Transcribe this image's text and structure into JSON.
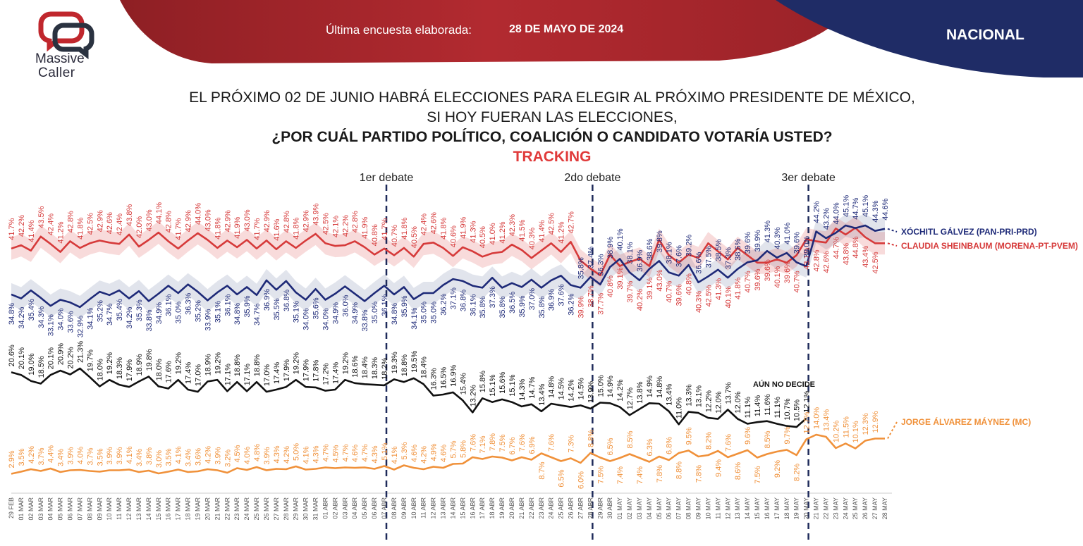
{
  "header": {
    "survey_label": "Última encuesta elaborada:",
    "survey_date": "28 DE MAYO DE 2024",
    "scope": "NACIONAL",
    "logo_line1": "Massive",
    "logo_line2": "Caller"
  },
  "title": {
    "line1": "EL PRÓXIMO 02 DE JUNIO HABRÁ ELECCIONES PARA ELEGIR AL PRÓXIMO PRESIDENTE DE MÉXICO,",
    "line2": "SI HOY FUERAN LAS ELECCIONES,",
    "line3": "¿POR CUÁL PARTIDO POLÍTICO, COALICIÓN O CANDIDATO VOTARÍA USTED?",
    "line4": "TRACKING"
  },
  "colors": {
    "red": "#d63a3a",
    "blue": "#1e2a78",
    "black": "#111111",
    "orange": "#f0913a",
    "banner_red": "#a5262c",
    "banner_blue": "#1f2c66"
  },
  "chart_data": {
    "type": "line",
    "x": [
      "29 FEB",
      "01 MAR",
      "02 MAR",
      "03 MAR",
      "04 MAR",
      "05 MAR",
      "06 MAR",
      "07 MAR",
      "08 MAR",
      "09 MAR",
      "10 MAR",
      "11 MAR",
      "12 MAR",
      "13 MAR",
      "14 MAR",
      "15 MAR",
      "16 MAR",
      "17 MAR",
      "18 MAR",
      "19 MAR",
      "20 MAR",
      "21 MAR",
      "22 MAR",
      "23 MAR",
      "24 MAR",
      "25 MAR",
      "26 MAR",
      "27 MAR",
      "28 MAR",
      "29 MAR",
      "30 MAR",
      "31 MAR",
      "01 ABR",
      "02 ABR",
      "03 ABR",
      "04 ABR",
      "05 ABR",
      "06 ABR",
      "07 ABR",
      "08 ABR",
      "09 ABR",
      "10 ABR",
      "11 ABR",
      "12 ABR",
      "13 ABR",
      "14 ABR",
      "15 ABR",
      "16 ABR",
      "17 ABR",
      "18 ABR",
      "19 ABR",
      "20 ABR",
      "21 ABR",
      "22 ABR",
      "23 ABR",
      "24 ABR",
      "25 ABR",
      "26 ABR",
      "27 ABR",
      "28 ABR",
      "29 ABR",
      "30 ABR",
      "01 MAY",
      "02 MAY",
      "03 MAY",
      "04 MAY",
      "05 MAY",
      "06 MAY",
      "07 MAY",
      "08 MAY",
      "09 MAY",
      "10 MAY",
      "11 MAY",
      "12 MAY",
      "13 MAY",
      "14 MAY",
      "15 MAY",
      "16 MAY",
      "17 MAY",
      "18 MAY",
      "19 MAY",
      "20 MAY",
      "21 MAY",
      "22 MAY",
      "23 MAY",
      "24 MAY",
      "25 MAY",
      "26 MAY",
      "27 MAY",
      "28 MAY"
    ],
    "series": [
      {
        "name": "CLAUDIA SHEINBAUM (MORENA-PT-PVEM)",
        "color": "#d63a3a",
        "values": [
          41.7,
          42.2,
          41.4,
          43.5,
          42.4,
          41.2,
          42.8,
          41.8,
          42.5,
          42.9,
          42.6,
          42.4,
          43.8,
          42.0,
          43.0,
          44.1,
          42.8,
          41.7,
          42.9,
          44.0,
          43.0,
          41.8,
          42.9,
          41.9,
          43.0,
          41.7,
          42.9,
          41.6,
          42.8,
          41.8,
          42.9,
          43.9,
          42.5,
          42.1,
          42.2,
          42.8,
          41.9,
          40.8,
          41.7,
          40.7,
          41.8,
          40.5,
          42.4,
          42.6,
          41.8,
          40.6,
          41.9,
          41.3,
          40.5,
          41.0,
          41.2,
          42.3,
          41.5,
          40.3,
          41.4,
          42.5,
          41.2,
          42.7,
          39.9,
          38.7,
          37.7,
          40.8,
          39.1,
          39.7,
          40.2,
          39.1,
          43.0,
          40.7,
          39.6,
          40.8,
          40.3,
          42.5,
          41.3,
          40.1,
          41.8,
          40.7,
          39.6,
          39.6,
          40.1,
          39.6,
          40.7,
          43.1,
          42.8,
          42.6,
          44.7,
          43.8,
          44.8,
          43.4,
          42.5,
          42.5
        ],
        "labels": [
          "41.7%",
          "42.2%",
          "41.4%",
          "43.5%",
          "42.4%",
          "41.2%",
          "42.8%",
          "41.8%",
          "42.5%",
          "42.9%",
          "42.6%",
          "42.4%",
          "43.8%",
          "42.0%",
          "43.0%",
          "44.1%",
          "42.8%",
          "41.7%",
          "42.9%",
          "44.0%",
          "43.0%",
          "41.8%",
          "42.9%",
          "41.9%",
          "43.0%",
          "41.7%",
          "42.9%",
          "41.6%",
          "42.8%",
          "41.8%",
          "42.9%",
          "43.9%",
          "42.5%",
          "42.1%",
          "42.2%",
          "42.8%",
          "41.9%",
          "40.8%",
          "41.7%",
          "40.7%",
          "41.8%",
          "40.5%",
          "42.4%",
          "42.6%",
          "41.8%",
          "40.6%",
          "41.9%",
          "41.3%",
          "40.5%",
          "41.0%",
          "41.2%",
          "42.3%",
          "41.5%",
          "40.3%",
          "41.4%",
          "42.5%",
          "41.2%",
          "42.7%",
          "39.9%",
          "38.7%",
          "37.7%",
          "40.8%",
          "39.1%",
          "39.7%",
          "40.2%",
          "39.1%",
          "43.0%",
          "40.7%",
          "39.6%",
          "40.8%",
          "40.3%",
          "42.5%",
          "41.3%",
          "40.1%",
          "41.8%",
          "40.7%",
          "39.6%",
          "39.6%",
          "40.1%",
          "39.6%",
          "40.7%",
          "43.1%",
          "42.8%",
          "42.6%",
          "44.7%",
          "43.8%",
          "44.8%",
          "43.4%",
          "42.5%",
          ""
        ]
      },
      {
        "name": "XÓCHITL GÁLVEZ (PAN-PRI-PRD)",
        "color": "#1e2a78",
        "values": [
          34.8,
          34.2,
          35.4,
          34.3,
          33.1,
          34.0,
          33.6,
          32.9,
          34.1,
          35.2,
          34.7,
          35.4,
          34.2,
          35.3,
          33.8,
          34.9,
          36.1,
          35.0,
          36.3,
          35.2,
          33.9,
          35.1,
          36.1,
          34.8,
          35.9,
          34.7,
          36.9,
          35.5,
          36.8,
          35.1,
          34.0,
          35.6,
          34.0,
          34.9,
          36.0,
          34.9,
          33.8,
          35.0,
          36.1,
          34.8,
          35.9,
          34.1,
          35.0,
          35.0,
          36.2,
          37.1,
          36.8,
          36.1,
          35.8,
          37.3,
          35.8,
          36.5,
          35.9,
          37.0,
          35.8,
          36.9,
          37.6,
          36.2,
          35.8,
          37.4,
          36.3,
          38.9,
          40.1,
          38.1,
          36.9,
          38.6,
          39.8,
          38.1,
          37.6,
          39.2,
          36.6,
          37.5,
          38.5,
          37.3,
          38.6,
          39.6,
          39.9,
          41.3,
          40.3,
          41.0,
          39.6,
          39.0,
          44.2,
          43.2,
          44.0,
          45.1,
          44.7,
          45.1,
          44.3,
          44.6
        ],
        "labels": [
          "34.8%",
          "34.2%",
          "35.4%",
          "34.3%",
          "33.1%",
          "34.0%",
          "33.6%",
          "32.9%",
          "34.1%",
          "35.2%",
          "34.7%",
          "35.4%",
          "34.2%",
          "35.3%",
          "33.8%",
          "34.9%",
          "36.1%",
          "35.0%",
          "36.3%",
          "35.2%",
          "33.9%",
          "35.1%",
          "36.1%",
          "34.8%",
          "35.9%",
          "34.7%",
          "36.9%",
          "35.5%",
          "36.8%",
          "35.1%",
          "34.0%",
          "35.6%",
          "34.0%",
          "34.9%",
          "36.0%",
          "34.9%",
          "33.8%",
          "35.0%",
          "36.1%",
          "34.8%",
          "35.9%",
          "34.1%",
          "35.0%",
          "35.0%",
          "36.2%",
          "37.1%",
          "36.8%",
          "36.1%",
          "35.8%",
          "37.3%",
          "35.8%",
          "36.5%",
          "35.9%",
          "37.0%",
          "35.8%",
          "36.9%",
          "37.6%",
          "36.2%",
          "35.8%",
          "37.4%",
          "36.3%",
          "38.9%",
          "40.1%",
          "38.1%",
          "36.9%",
          "38.6%",
          "39.8%",
          "38.1%",
          "37.6%",
          "39.2%",
          "36.6%",
          "37.5%",
          "38.5%",
          "37.3%",
          "38.6%",
          "39.6%",
          "39.9%",
          "41.3%",
          "40.3%",
          "41.0%",
          "39.6%",
          "39.0%",
          "44.2%",
          "43.2%",
          "44.0%",
          "45.1%",
          "44.7%",
          "45.1%",
          "44.3%",
          "44.6%"
        ]
      },
      {
        "name": "AÚN NO DECIDE",
        "color": "#111111",
        "values": [
          20.6,
          20.1,
          19.0,
          18.5,
          20.1,
          20.9,
          20.2,
          21.3,
          19.7,
          18.0,
          19.2,
          18.3,
          17.9,
          18.9,
          19.8,
          18.0,
          17.6,
          19.2,
          17.4,
          17.0,
          18.9,
          19.2,
          17.1,
          18.8,
          17.1,
          18.8,
          17.0,
          17.4,
          17.9,
          19.2,
          17.9,
          17.8,
          17.2,
          17.4,
          19.2,
          18.6,
          18.4,
          18.3,
          18.2,
          19.3,
          18.8,
          19.5,
          18.4,
          16.3,
          16.5,
          16.9,
          15.4,
          13.2,
          15.8,
          15.1,
          15.6,
          15.1,
          14.3,
          14.7,
          13.4,
          14.8,
          14.5,
          14.2,
          14.5,
          13.9,
          15.0,
          14.9,
          14.2,
          12.7,
          13.8,
          14.9,
          14.8,
          13.4,
          11.0,
          13.3,
          13.1,
          12.2,
          12.0,
          13.7,
          12.0,
          11.1,
          11.4,
          11.6,
          11.1,
          10.7,
          10.5,
          12.1,
          null,
          null,
          null,
          null,
          null,
          null,
          null,
          null
        ],
        "labels": [
          "20.6%",
          "20.1%",
          "19.0%",
          "18.5%",
          "20.1%",
          "20.9%",
          "20.2%",
          "21.3%",
          "19.7%",
          "18.0%",
          "19.2%",
          "18.3%",
          "17.9%",
          "18.9%",
          "19.8%",
          "18.0%",
          "17.6%",
          "19.2%",
          "17.4%",
          "17.0%",
          "18.9%",
          "19.2%",
          "17.1%",
          "18.8%",
          "17.1%",
          "18.8%",
          "17.0%",
          "17.4%",
          "17.9%",
          "19.2%",
          "17.9%",
          "17.8%",
          "17.2%",
          "17.4%",
          "19.2%",
          "18.6%",
          "18.4%",
          "18.3%",
          "18.2%",
          "19.3%",
          "18.8%",
          "19.5%",
          "18.4%",
          "16.3%",
          "16.5%",
          "16.9%",
          "15.4%",
          "13.2%",
          "15.8%",
          "15.1%",
          "15.6%",
          "15.1%",
          "14.3%",
          "14.7%",
          "13.4%",
          "14.8%",
          "14.5%",
          "14.2%",
          "14.5%",
          "13.9%",
          "15.0%",
          "14.9%",
          "14.2%",
          "12.7%",
          "13.8%",
          "14.9%",
          "14.8%",
          "13.4%",
          "11.0%",
          "13.3%",
          "13.1%",
          "12.2%",
          "12.0%",
          "13.7%",
          "12.0%",
          "11.1%",
          "11.4%",
          "11.6%",
          "11.1%",
          "10.7%",
          "10.5%",
          "12.1%",
          "",
          "",
          "",
          "",
          "",
          "",
          "",
          ""
        ]
      },
      {
        "name": "JORGE ÁLVAREZ MÁYNEZ (MC)",
        "color": "#f0913a",
        "values": [
          2.9,
          3.5,
          4.2,
          3.7,
          4.4,
          3.4,
          3.9,
          4.0,
          3.7,
          3.5,
          3.9,
          3.9,
          4.1,
          3.4,
          3.8,
          3.0,
          3.5,
          4.1,
          3.4,
          3.6,
          4.2,
          3.9,
          3.2,
          4.5,
          4.0,
          4.8,
          3.9,
          4.3,
          4.2,
          5.0,
          4.1,
          4.3,
          4.7,
          4.5,
          4.7,
          4.6,
          4.7,
          4.3,
          5.1,
          4.1,
          5.3,
          4.6,
          4.2,
          4.9,
          4.6,
          5.7,
          5.8,
          7.6,
          7.1,
          7.8,
          7.5,
          6.7,
          7.6,
          6.9,
          8.7,
          7.6,
          6.5,
          7.3,
          6.0,
          8.8,
          7.5,
          6.5,
          7.4,
          8.5,
          7.4,
          6.3,
          7.8,
          6.8,
          8.8,
          9.5,
          7.8,
          8.2,
          9.4,
          7.6,
          8.6,
          9.6,
          7.5,
          8.5,
          9.2,
          9.7,
          8.2,
          12.7,
          14.0,
          13.4,
          10.2,
          11.5,
          10.1,
          12.3,
          12.9,
          12.9
        ],
        "labels": [
          "2.9%",
          "3.5%",
          "4.2%",
          "3.7%",
          "4.4%",
          "3.4%",
          "3.9%",
          "4.0%",
          "3.7%",
          "3.5%",
          "3.9%",
          "3.9%",
          "4.1%",
          "3.4%",
          "3.8%",
          "3.0%",
          "3.5%",
          "4.1%",
          "3.4%",
          "3.6%",
          "4.2%",
          "3.9%",
          "3.2%",
          "4.5%",
          "4.0%",
          "4.8%",
          "3.9%",
          "4.3%",
          "4.2%",
          "5.0%",
          "4.1%",
          "4.3%",
          "4.7%",
          "4.5%",
          "4.7%",
          "4.6%",
          "4.7%",
          "4.3%",
          "5.1%",
          "4.1%",
          "5.3%",
          "4.6%",
          "4.2%",
          "4.9%",
          "4.6%",
          "5.7%",
          "5.8%",
          "7.6%",
          "7.1%",
          "7.8%",
          "7.5%",
          "6.7%",
          "7.6%",
          "6.9%",
          "8.7%",
          "7.6%",
          "6.5%",
          "7.3%",
          "6.0%",
          "8.8%",
          "7.5%",
          "6.5%",
          "7.4%",
          "8.5%",
          "7.4%",
          "6.3%",
          "7.8%",
          "6.8%",
          "8.8%",
          "9.5%",
          "7.8%",
          "8.2%",
          "9.4%",
          "7.6%",
          "8.6%",
          "9.6%",
          "7.5%",
          "8.5%",
          "9.2%",
          "9.7%",
          "8.2%",
          "12.7%",
          "14.0%",
          "13.4%",
          "10.2%",
          "11.5%",
          "10.1%",
          "12.3%",
          "12.9%",
          ""
        ]
      }
    ],
    "annotations": [
      {
        "label": "1er debate",
        "x": "07 ABR"
      },
      {
        "label": "2do debate",
        "x": "28 ABR"
      },
      {
        "label": "3er debate",
        "x": "20 MAY"
      }
    ],
    "undecided_label": "AÚN NO DECIDE",
    "grid": false,
    "legend": "right"
  }
}
